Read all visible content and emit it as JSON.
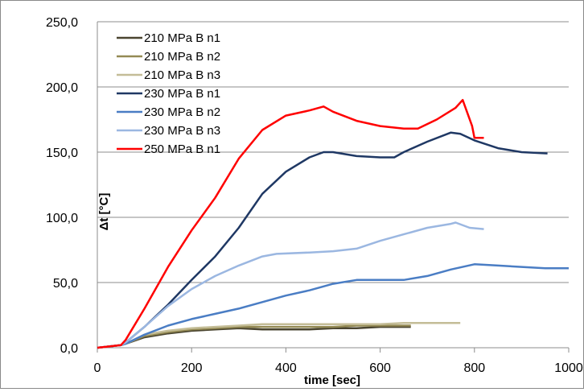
{
  "chart_data": {
    "type": "line",
    "title": "",
    "xlabel": "time [sec]",
    "ylabel": "Δt [°C]",
    "xlim": [
      0,
      1000
    ],
    "ylim": [
      0,
      250
    ],
    "x_ticks": [
      "0",
      "200",
      "400",
      "600",
      "800",
      "1000"
    ],
    "y_ticks": [
      "0,0",
      "50,0",
      "100,0",
      "150,0",
      "200,0",
      "250,0"
    ],
    "grid": "horizontal",
    "legend_position": "top-left",
    "series": [
      {
        "name": "210 MPa B n1",
        "color": "#4a4530",
        "points": [
          [
            0,
            0
          ],
          [
            50,
            2
          ],
          [
            60,
            3
          ],
          [
            100,
            8
          ],
          [
            150,
            11
          ],
          [
            200,
            13
          ],
          [
            250,
            14
          ],
          [
            300,
            15
          ],
          [
            350,
            14
          ],
          [
            400,
            14
          ],
          [
            450,
            14
          ],
          [
            500,
            15
          ],
          [
            550,
            15
          ],
          [
            600,
            16
          ],
          [
            650,
            16
          ],
          [
            665,
            16
          ]
        ]
      },
      {
        "name": "210 MPa B n2",
        "color": "#948a54",
        "points": [
          [
            0,
            0
          ],
          [
            50,
            2
          ],
          [
            60,
            3
          ],
          [
            100,
            9
          ],
          [
            150,
            12
          ],
          [
            200,
            14
          ],
          [
            250,
            15
          ],
          [
            300,
            16
          ],
          [
            350,
            16
          ],
          [
            400,
            16
          ],
          [
            450,
            16
          ],
          [
            500,
            16
          ],
          [
            550,
            17
          ],
          [
            600,
            17
          ],
          [
            650,
            17
          ],
          [
            665,
            17
          ]
        ]
      },
      {
        "name": "210 MPa B n3",
        "color": "#c4bd97",
        "points": [
          [
            0,
            0
          ],
          [
            50,
            2
          ],
          [
            60,
            3
          ],
          [
            100,
            10
          ],
          [
            150,
            13
          ],
          [
            200,
            15
          ],
          [
            250,
            16
          ],
          [
            300,
            17
          ],
          [
            350,
            18
          ],
          [
            400,
            18
          ],
          [
            450,
            18
          ],
          [
            500,
            18
          ],
          [
            550,
            18
          ],
          [
            600,
            18
          ],
          [
            650,
            19
          ],
          [
            700,
            19
          ],
          [
            750,
            19
          ],
          [
            770,
            19
          ]
        ]
      },
      {
        "name": "230 MPa B n1",
        "color": "#1f3864",
        "points": [
          [
            0,
            0
          ],
          [
            50,
            2
          ],
          [
            60,
            4
          ],
          [
            100,
            16
          ],
          [
            150,
            33
          ],
          [
            200,
            52
          ],
          [
            250,
            70
          ],
          [
            300,
            92
          ],
          [
            350,
            118
          ],
          [
            400,
            135
          ],
          [
            450,
            146
          ],
          [
            480,
            150
          ],
          [
            500,
            150
          ],
          [
            550,
            147
          ],
          [
            600,
            146
          ],
          [
            630,
            146
          ],
          [
            650,
            150
          ],
          [
            700,
            158
          ],
          [
            750,
            165
          ],
          [
            770,
            164
          ],
          [
            800,
            159
          ],
          [
            850,
            153
          ],
          [
            900,
            150
          ],
          [
            955,
            149
          ]
        ]
      },
      {
        "name": "230 MPa B n2",
        "color": "#4a7dc4",
        "points": [
          [
            0,
            0
          ],
          [
            50,
            2
          ],
          [
            60,
            3
          ],
          [
            100,
            10
          ],
          [
            150,
            17
          ],
          [
            200,
            22
          ],
          [
            250,
            26
          ],
          [
            300,
            30
          ],
          [
            350,
            35
          ],
          [
            400,
            40
          ],
          [
            450,
            44
          ],
          [
            500,
            49
          ],
          [
            550,
            52
          ],
          [
            600,
            52
          ],
          [
            650,
            52
          ],
          [
            700,
            55
          ],
          [
            750,
            60
          ],
          [
            800,
            64
          ],
          [
            850,
            63
          ],
          [
            900,
            62
          ],
          [
            950,
            61
          ],
          [
            1000,
            61
          ]
        ]
      },
      {
        "name": "230 MPa B n3",
        "color": "#9bb7e1",
        "points": [
          [
            0,
            0
          ],
          [
            50,
            2
          ],
          [
            60,
            4
          ],
          [
            100,
            16
          ],
          [
            150,
            32
          ],
          [
            200,
            45
          ],
          [
            250,
            55
          ],
          [
            300,
            63
          ],
          [
            350,
            70
          ],
          [
            380,
            72
          ],
          [
            450,
            73
          ],
          [
            500,
            74
          ],
          [
            550,
            76
          ],
          [
            600,
            82
          ],
          [
            650,
            87
          ],
          [
            700,
            92
          ],
          [
            750,
            95
          ],
          [
            760,
            96
          ],
          [
            790,
            92
          ],
          [
            820,
            91
          ]
        ]
      },
      {
        "name": "250 MPa B n1",
        "color": "#ff0000",
        "points": [
          [
            0,
            0
          ],
          [
            50,
            2
          ],
          [
            60,
            6
          ],
          [
            100,
            30
          ],
          [
            150,
            62
          ],
          [
            200,
            90
          ],
          [
            250,
            115
          ],
          [
            300,
            145
          ],
          [
            350,
            167
          ],
          [
            400,
            178
          ],
          [
            450,
            182
          ],
          [
            480,
            185
          ],
          [
            500,
            181
          ],
          [
            550,
            174
          ],
          [
            600,
            170
          ],
          [
            650,
            168
          ],
          [
            680,
            168
          ],
          [
            720,
            175
          ],
          [
            760,
            184
          ],
          [
            775,
            190
          ],
          [
            795,
            170
          ],
          [
            800,
            161
          ],
          [
            820,
            161
          ]
        ]
      }
    ]
  }
}
